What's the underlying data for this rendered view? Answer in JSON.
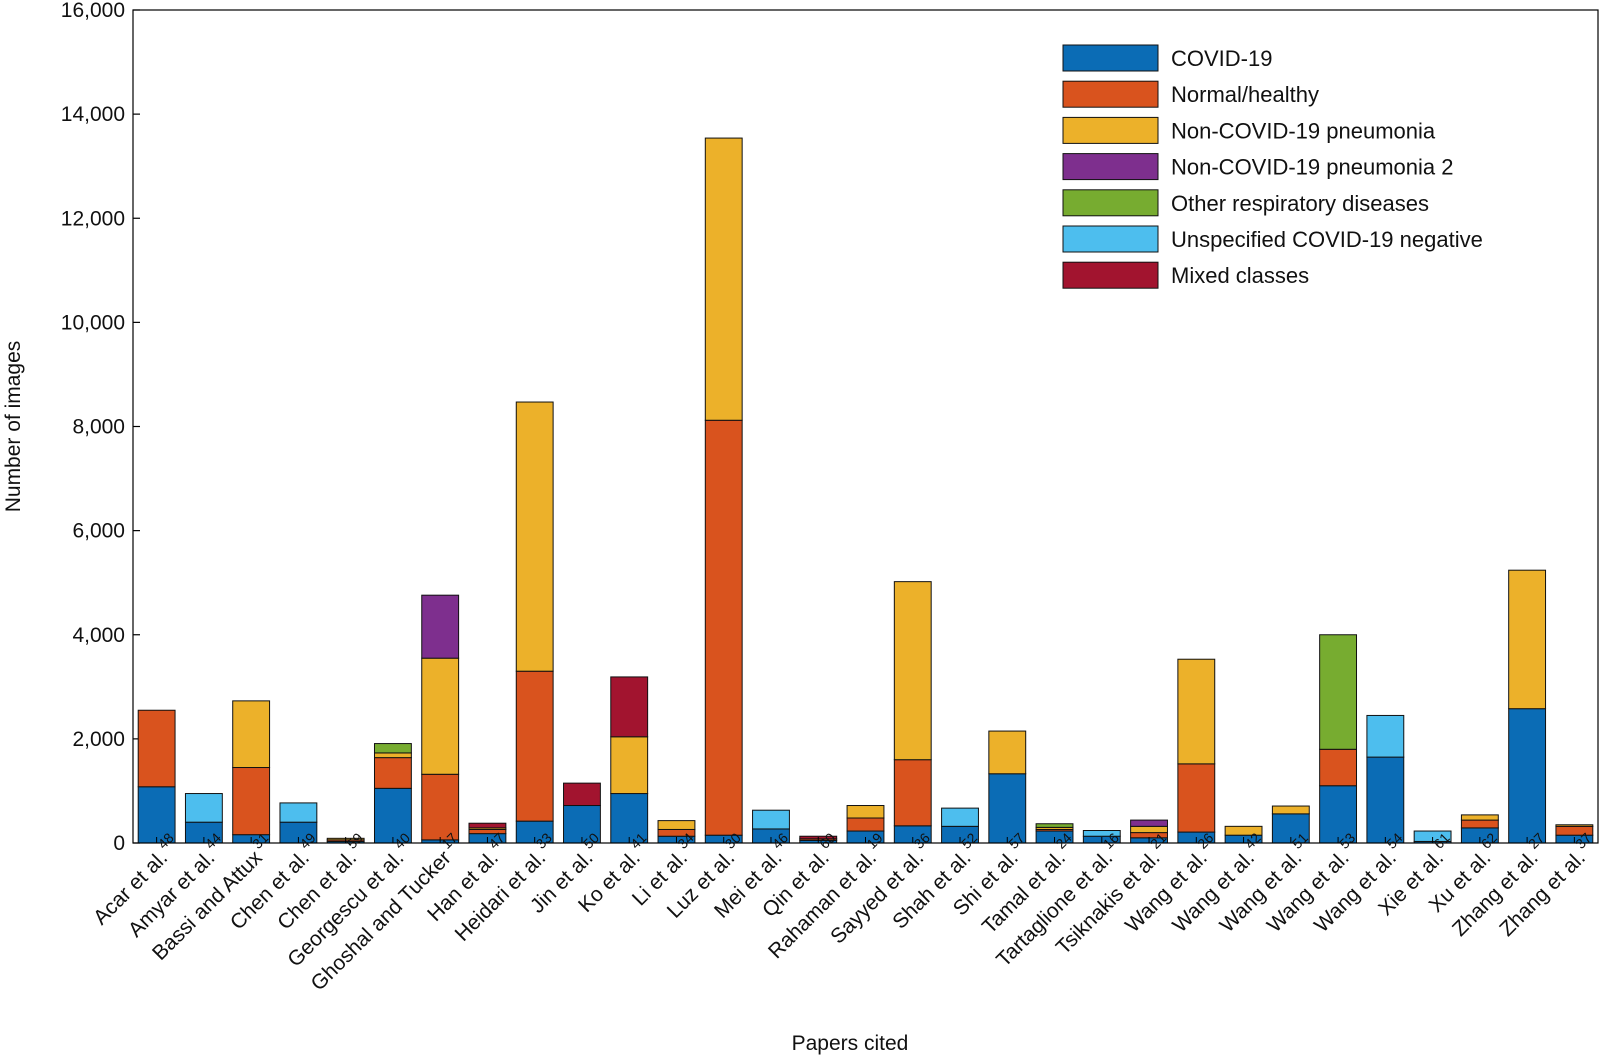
{
  "chart_data": {
    "type": "bar",
    "stacked": true,
    "ylabel": "Number of images",
    "xlabel": "Papers cited",
    "ylim": [
      0,
      16000
    ],
    "y_ticks": [
      0,
      2000,
      4000,
      6000,
      8000,
      10000,
      12000,
      14000,
      16000
    ],
    "y_tick_labels": [
      "0",
      "2,000",
      "4,000",
      "6,000",
      "8,000",
      "10,000",
      "12,000",
      "14,000",
      "16,000"
    ],
    "legend_position": "top-right",
    "categories": [
      {
        "label": "Acar et al.",
        "ref": "48"
      },
      {
        "label": "Amyar et al.",
        "ref": "44"
      },
      {
        "label": "Bassi and Attux",
        "ref": "31"
      },
      {
        "label": "Chen et al.",
        "ref": "49"
      },
      {
        "label": "Chen et al.",
        "ref": "59"
      },
      {
        "label": "Georgescu et al.",
        "ref": "40"
      },
      {
        "label": "Ghoshal  and Tucker",
        "ref": "17"
      },
      {
        "label": "Han et al.",
        "ref": "47"
      },
      {
        "label": "Heidari et al.",
        "ref": "33"
      },
      {
        "label": "Jin et al.",
        "ref": "50"
      },
      {
        "label": "Ko et al.",
        "ref": "41"
      },
      {
        "label": "Li et al.",
        "ref": "34"
      },
      {
        "label": "Luz et al.",
        "ref": "30"
      },
      {
        "label": "Mei et al.",
        "ref": "46"
      },
      {
        "label": "Qin et al.",
        "ref": "60"
      },
      {
        "label": "Rahaman et al.",
        "ref": "19"
      },
      {
        "label": "Sayyed et al.",
        "ref": "36"
      },
      {
        "label": "Shah et al.",
        "ref": "52"
      },
      {
        "label": "Shi et al.",
        "ref": "57"
      },
      {
        "label": "Tamal et al.",
        "ref": "24"
      },
      {
        "label": "Tartaglione et al.",
        "ref": "16"
      },
      {
        "label": "Tsiknakis et al.",
        "ref": "21"
      },
      {
        "label": "Wang et al.",
        "ref": "26"
      },
      {
        "label": "Wang et al.",
        "ref": "42"
      },
      {
        "label": "Wang et al.",
        "ref": "51"
      },
      {
        "label": "Wang et al.",
        "ref": "53"
      },
      {
        "label": "Wang et al.",
        "ref": "54"
      },
      {
        "label": "Xie et al.",
        "ref": "61"
      },
      {
        "label": "Xu et al.",
        "ref": "62"
      },
      {
        "label": "Zhang et al.",
        "ref": "27"
      },
      {
        "label": "Zhang et al.",
        "ref": "37"
      }
    ],
    "series": [
      {
        "name": "COVID-19",
        "color": "#0b6cb5",
        "values": [
          1080,
          400,
          160,
          400,
          30,
          1050,
          60,
          180,
          420,
          720,
          950,
          130,
          150,
          270,
          50,
          230,
          330,
          320,
          1330,
          230,
          130,
          100,
          210,
          150,
          560,
          1100,
          1650,
          30,
          290,
          2580,
          150
        ]
      },
      {
        "name": "Normal/healthy",
        "color": "#d9531e",
        "values": [
          1470,
          0,
          1290,
          0,
          30,
          590,
          1260,
          80,
          2880,
          0,
          0,
          130,
          7970,
          0,
          30,
          250,
          1270,
          0,
          0,
          30,
          0,
          100,
          1310,
          0,
          0,
          700,
          0,
          0,
          150,
          0,
          170
        ]
      },
      {
        "name": "Non-COVID-19 pneumonia",
        "color": "#ecb12a",
        "values": [
          0,
          0,
          1280,
          0,
          30,
          90,
          2230,
          30,
          5170,
          0,
          1090,
          170,
          5420,
          0,
          0,
          240,
          3420,
          0,
          820,
          40,
          0,
          120,
          2010,
          170,
          150,
          0,
          0,
          0,
          100,
          2660,
          30
        ]
      },
      {
        "name": "Non-COVID-19 pneumonia 2",
        "color": "#7e2f8e",
        "values": [
          0,
          0,
          0,
          0,
          0,
          0,
          1210,
          0,
          0,
          0,
          0,
          0,
          0,
          0,
          0,
          0,
          0,
          0,
          0,
          0,
          0,
          120,
          0,
          0,
          0,
          0,
          0,
          0,
          0,
          0,
          0
        ]
      },
      {
        "name": "Other respiratory diseases",
        "color": "#77ac30",
        "values": [
          0,
          0,
          0,
          0,
          0,
          180,
          0,
          0,
          0,
          0,
          0,
          0,
          0,
          0,
          0,
          0,
          0,
          0,
          0,
          70,
          0,
          0,
          0,
          0,
          0,
          2200,
          0,
          0,
          0,
          0,
          0
        ]
      },
      {
        "name": "Unspecified COVID-19 negative",
        "color": "#4dbeee",
        "values": [
          0,
          550,
          0,
          370,
          0,
          0,
          0,
          0,
          0,
          0,
          0,
          0,
          0,
          360,
          0,
          0,
          0,
          350,
          0,
          0,
          110,
          0,
          0,
          0,
          0,
          0,
          800,
          200,
          0,
          0,
          0
        ]
      },
      {
        "name": "Mixed classes",
        "color": "#a2142f",
        "values": [
          0,
          0,
          0,
          0,
          0,
          0,
          0,
          90,
          0,
          430,
          1150,
          0,
          0,
          0,
          50,
          0,
          0,
          0,
          0,
          0,
          0,
          0,
          0,
          0,
          0,
          0,
          0,
          0,
          0,
          0,
          0
        ]
      }
    ]
  }
}
